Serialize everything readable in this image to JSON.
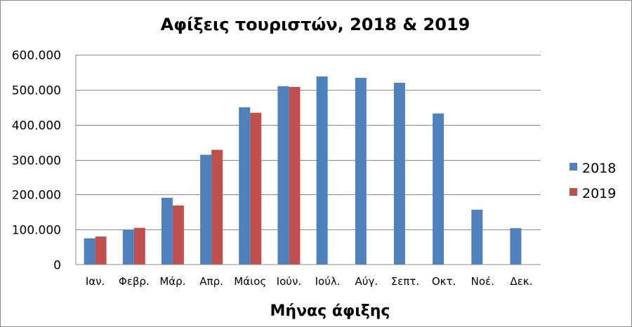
{
  "chart_data": {
    "type": "bar",
    "title": "Αφίξεις τουριστών, 2018 & 2019",
    "xlabel": "Μήνας άφιξης",
    "ylabel": "",
    "ylim": [
      0,
      600000
    ],
    "yticks": [
      0,
      100000,
      200000,
      300000,
      400000,
      500000,
      600000
    ],
    "ytick_labels": [
      "0",
      "100.000",
      "200.000",
      "300.000",
      "400.000",
      "500.000",
      "600.000"
    ],
    "grid": true,
    "legend_position": "right",
    "categories": [
      "Ιαν.",
      "Φεβρ.",
      "Μάρ.",
      "Απρ.",
      "Μάιος",
      "Ιούν.",
      "Ιούλ.",
      "Αύγ.",
      "Σεπτ.",
      "Οκτ.",
      "Νοέ.",
      "Δεκ."
    ],
    "series": [
      {
        "name": "2018",
        "color": "#4f81bd",
        "values": [
          75000,
          100000,
          191000,
          314000,
          450000,
          510000,
          538000,
          534000,
          520000,
          432000,
          157000,
          104000
        ]
      },
      {
        "name": "2019",
        "color": "#c0504d",
        "values": [
          80000,
          105000,
          169000,
          328000,
          434000,
          508000,
          null,
          null,
          null,
          null,
          null,
          null
        ]
      }
    ]
  }
}
